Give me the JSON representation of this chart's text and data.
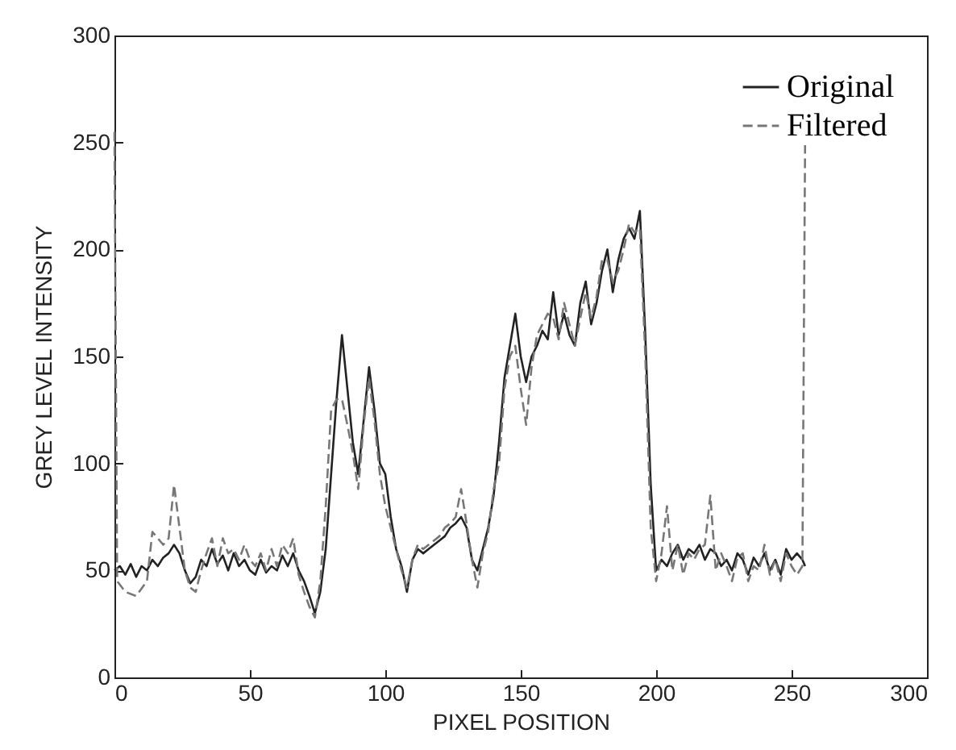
{
  "chart_data": {
    "type": "line",
    "xlabel": "PIXEL POSITION",
    "ylabel": "GREY LEVEL INTENSITY",
    "xlim": [
      0,
      300
    ],
    "ylim": [
      0,
      300
    ],
    "xticks": [
      0,
      50,
      100,
      150,
      200,
      250,
      300
    ],
    "yticks": [
      0,
      50,
      100,
      150,
      200,
      250,
      300
    ],
    "grid": false,
    "legend": "top right",
    "marker": "none",
    "x": [
      0,
      2,
      4,
      6,
      8,
      10,
      12,
      14,
      16,
      18,
      20,
      22,
      24,
      26,
      28,
      30,
      32,
      34,
      36,
      38,
      40,
      42,
      44,
      46,
      48,
      50,
      52,
      54,
      56,
      58,
      60,
      62,
      64,
      66,
      68,
      70,
      72,
      74,
      76,
      78,
      80,
      82,
      84,
      86,
      88,
      90,
      92,
      94,
      96,
      98,
      100,
      102,
      104,
      106,
      108,
      110,
      112,
      114,
      116,
      118,
      120,
      122,
      124,
      126,
      128,
      130,
      132,
      134,
      136,
      138,
      140,
      142,
      144,
      146,
      148,
      150,
      152,
      154,
      156,
      158,
      160,
      162,
      164,
      166,
      168,
      170,
      172,
      174,
      176,
      178,
      180,
      182,
      184,
      186,
      188,
      190,
      192,
      194,
      196,
      198,
      200,
      202,
      204,
      206,
      208,
      210,
      212,
      214,
      216,
      218,
      220,
      222,
      224,
      226,
      228,
      230,
      232,
      234,
      236,
      238,
      240,
      242,
      244,
      246,
      248,
      250,
      252,
      254,
      255
    ],
    "series": [
      {
        "name": "Original",
        "color": "#222222",
        "line_style": "solid",
        "values": [
          50,
          52,
          48,
          53,
          47,
          52,
          50,
          55,
          52,
          56,
          58,
          62,
          58,
          50,
          44,
          47,
          55,
          52,
          60,
          53,
          57,
          50,
          58,
          52,
          55,
          50,
          48,
          55,
          49,
          52,
          50,
          57,
          52,
          58,
          50,
          45,
          38,
          30,
          40,
          60,
          95,
          130,
          160,
          135,
          110,
          95,
          120,
          145,
          125,
          100,
          95,
          75,
          60,
          52,
          40,
          55,
          60,
          58,
          60,
          62,
          64,
          66,
          70,
          72,
          75,
          70,
          55,
          50,
          60,
          70,
          85,
          110,
          140,
          155,
          170,
          150,
          138,
          150,
          155,
          162,
          158,
          180,
          160,
          170,
          160,
          155,
          175,
          185,
          165,
          175,
          190,
          200,
          180,
          195,
          205,
          210,
          205,
          218,
          160,
          90,
          50,
          55,
          52,
          58,
          62,
          55,
          60,
          58,
          62,
          55,
          60,
          58,
          52,
          55,
          50,
          58,
          55,
          48,
          56,
          52,
          58,
          50,
          55,
          48,
          60,
          55,
          58,
          55,
          52
        ]
      },
      {
        "name": "Filtered",
        "color": "#777777",
        "line_style": "dashed",
        "x": [
          0,
          1,
          4,
          8,
          12,
          14,
          16,
          18,
          20,
          22,
          24,
          26,
          28,
          30,
          32,
          34,
          36,
          38,
          40,
          42,
          44,
          46,
          48,
          50,
          52,
          54,
          56,
          58,
          60,
          62,
          64,
          66,
          68,
          70,
          72,
          74,
          76,
          78,
          80,
          82,
          84,
          86,
          88,
          90,
          92,
          94,
          96,
          98,
          100,
          102,
          104,
          106,
          108,
          110,
          112,
          114,
          116,
          118,
          120,
          122,
          124,
          126,
          128,
          130,
          132,
          134,
          136,
          138,
          140,
          142,
          144,
          146,
          148,
          150,
          152,
          154,
          156,
          158,
          160,
          162,
          164,
          166,
          168,
          170,
          172,
          174,
          176,
          178,
          180,
          182,
          184,
          186,
          188,
          190,
          192,
          194,
          196,
          198,
          200,
          202,
          204,
          206,
          208,
          210,
          212,
          214,
          216,
          218,
          220,
          222,
          224,
          226,
          228,
          230,
          232,
          234,
          236,
          238,
          240,
          242,
          244,
          246,
          248,
          250,
          252,
          254,
          255
        ],
        "values": [
          255,
          45,
          40,
          38,
          45,
          68,
          65,
          62,
          65,
          90,
          70,
          50,
          42,
          40,
          50,
          58,
          65,
          52,
          65,
          58,
          60,
          55,
          62,
          55,
          52,
          58,
          50,
          60,
          52,
          62,
          58,
          65,
          48,
          40,
          33,
          28,
          45,
          80,
          125,
          130,
          130,
          118,
          105,
          88,
          118,
          140,
          120,
          95,
          80,
          70,
          60,
          50,
          42,
          55,
          62,
          60,
          62,
          64,
          66,
          70,
          72,
          75,
          88,
          72,
          55,
          42,
          58,
          68,
          88,
          100,
          135,
          150,
          155,
          135,
          118,
          145,
          160,
          165,
          170,
          168,
          158,
          175,
          165,
          155,
          168,
          180,
          168,
          178,
          195,
          195,
          185,
          190,
          200,
          212,
          208,
          210,
          150,
          70,
          45,
          58,
          80,
          50,
          62,
          48,
          58,
          55,
          60,
          62,
          85,
          50,
          58,
          52,
          45,
          56,
          58,
          45,
          52,
          50,
          62,
          48,
          55,
          45,
          58,
          52,
          48,
          52,
          250
        ]
      }
    ]
  }
}
